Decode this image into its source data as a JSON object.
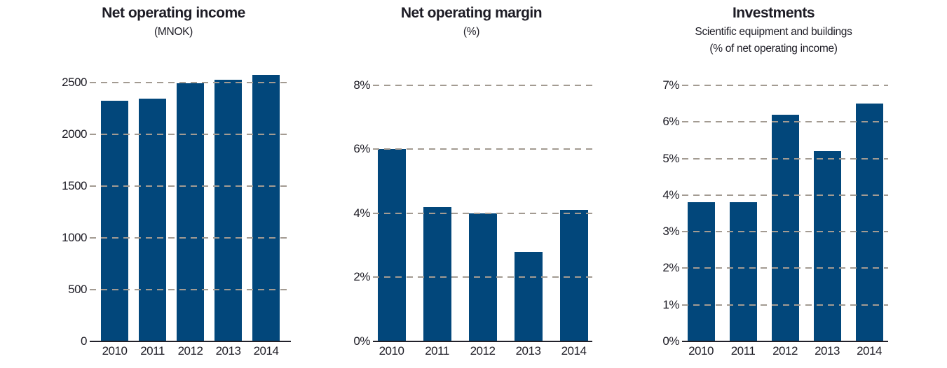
{
  "colors": {
    "bar": "#02477b",
    "gridline": "#a39b92",
    "axis": "#22212a",
    "text": "#1d1c25",
    "background": "#ffffff"
  },
  "chart_data": [
    {
      "type": "bar",
      "title": "Net operating income",
      "subtitle_lines": [
        "(MNOK)"
      ],
      "categories": [
        "2010",
        "2011",
        "2012",
        "2013",
        "2014"
      ],
      "values": [
        2325,
        2340,
        2490,
        2525,
        2575
      ],
      "xlabel": "",
      "ylabel": "",
      "ylim": [
        0,
        2620
      ],
      "yticks": [
        {
          "value": 0,
          "label": "0"
        },
        {
          "value": 500,
          "label": "500"
        },
        {
          "value": 1000,
          "label": "1000"
        },
        {
          "value": 1500,
          "label": "1500"
        },
        {
          "value": 2000,
          "label": "2000"
        },
        {
          "value": 2500,
          "label": "2500"
        }
      ],
      "grid": "horizontal-dashed",
      "legend": "none"
    },
    {
      "type": "bar",
      "title": "Net operating margin",
      "subtitle_lines": [
        "(%)"
      ],
      "categories": [
        "2010",
        "2011",
        "2012",
        "2013",
        "2014"
      ],
      "values": [
        6.0,
        4.2,
        4.0,
        2.8,
        4.1
      ],
      "xlabel": "",
      "ylabel": "",
      "ylim": [
        0,
        8.5
      ],
      "yticks": [
        {
          "value": 0,
          "label": "0%"
        },
        {
          "value": 2,
          "label": "2%"
        },
        {
          "value": 4,
          "label": "4%"
        },
        {
          "value": 6,
          "label": "6%"
        },
        {
          "value": 8,
          "label": "8%"
        }
      ],
      "grid": "horizontal-dashed",
      "legend": "none"
    },
    {
      "type": "bar",
      "title": "Investments",
      "subtitle_lines": [
        "Scientific equipment and buildings",
        "(% of net operating income)"
      ],
      "categories": [
        "2010",
        "2011",
        "2012",
        "2013",
        "2014"
      ],
      "values": [
        3.8,
        3.8,
        6.2,
        5.2,
        6.5
      ],
      "xlabel": "",
      "ylabel": "",
      "ylim": [
        0,
        7.4
      ],
      "yticks": [
        {
          "value": 0,
          "label": "0%"
        },
        {
          "value": 1,
          "label": "1%"
        },
        {
          "value": 2,
          "label": "2%"
        },
        {
          "value": 3,
          "label": "3%"
        },
        {
          "value": 4,
          "label": "4%"
        },
        {
          "value": 5,
          "label": "5%"
        },
        {
          "value": 6,
          "label": "6%"
        },
        {
          "value": 7,
          "label": "7%"
        }
      ],
      "grid": "horizontal-dashed",
      "legend": "none"
    }
  ]
}
